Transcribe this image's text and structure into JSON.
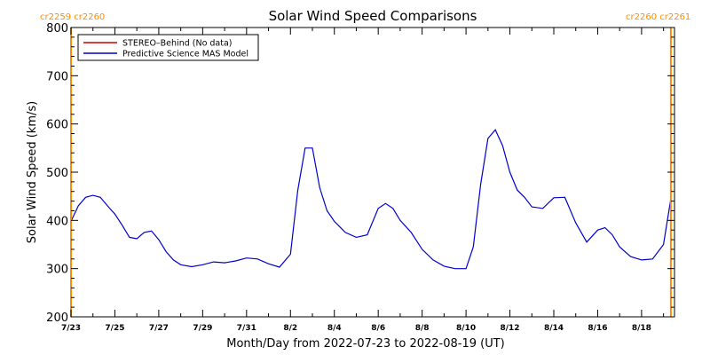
{
  "chart_data": {
    "type": "line",
    "title": "Solar Wind Speed Comparisons",
    "xlabel": "Month/Day from 2022-07-23 to 2022-08-19 (UT)",
    "ylabel": "Solar Wind Speed (km/s)",
    "xlim": [
      "2022-07-23",
      "2022-08-19T12:00"
    ],
    "ylim": [
      200,
      800
    ],
    "yticks": [
      200,
      300,
      400,
      500,
      600,
      700,
      800
    ],
    "xtick_labels": [
      "7/23",
      "7/25",
      "7/27",
      "7/29",
      "7/31",
      "8/2",
      "8/4",
      "8/6",
      "8/8",
      "8/10",
      "8/12",
      "8/14",
      "8/16",
      "8/18"
    ],
    "legend_position": "top-left",
    "legend": [
      {
        "name": "STEREO–Behind (No data)",
        "color": "#cc0000"
      },
      {
        "name": "Predictive Science MAS Model",
        "color": "#0000cc"
      }
    ],
    "carrington_markers": [
      {
        "date": "2022-07-23",
        "left_label": "cr2259",
        "right_label": "cr2260",
        "label_side": "left"
      },
      {
        "date": "2022-08-19T08:00",
        "left_label": "cr2260",
        "right_label": "cr2261",
        "label_side": "right"
      }
    ],
    "series": [
      {
        "name": "Predictive Science MAS Model",
        "color": "#0000cc",
        "x": [
          "2022-07-23T00:00",
          "2022-07-23T08:00",
          "2022-07-23T16:00",
          "2022-07-24T00:00",
          "2022-07-24T08:00",
          "2022-07-24T16:00",
          "2022-07-25T00:00",
          "2022-07-25T08:00",
          "2022-07-25T16:00",
          "2022-07-26T00:00",
          "2022-07-26T08:00",
          "2022-07-26T16:00",
          "2022-07-27T00:00",
          "2022-07-27T08:00",
          "2022-07-27T16:00",
          "2022-07-28T00:00",
          "2022-07-28T12:00",
          "2022-07-29T00:00",
          "2022-07-29T12:00",
          "2022-07-30T00:00",
          "2022-07-30T12:00",
          "2022-07-31T00:00",
          "2022-07-31T12:00",
          "2022-08-01T00:00",
          "2022-08-01T12:00",
          "2022-08-02T00:00",
          "2022-08-02T08:00",
          "2022-08-02T16:00",
          "2022-08-03T00:00",
          "2022-08-03T08:00",
          "2022-08-03T16:00",
          "2022-08-04T00:00",
          "2022-08-04T12:00",
          "2022-08-05T00:00",
          "2022-08-05T12:00",
          "2022-08-06T00:00",
          "2022-08-06T08:00",
          "2022-08-06T16:00",
          "2022-08-07T00:00",
          "2022-08-07T12:00",
          "2022-08-08T00:00",
          "2022-08-08T12:00",
          "2022-08-09T00:00",
          "2022-08-09T12:00",
          "2022-08-10T00:00",
          "2022-08-10T08:00",
          "2022-08-10T16:00",
          "2022-08-11T00:00",
          "2022-08-11T08:00",
          "2022-08-11T16:00",
          "2022-08-12T00:00",
          "2022-08-12T08:00",
          "2022-08-12T16:00",
          "2022-08-13T00:00",
          "2022-08-13T12:00",
          "2022-08-14T00:00",
          "2022-08-14T12:00",
          "2022-08-15T00:00",
          "2022-08-15T12:00",
          "2022-08-16T00:00",
          "2022-08-16T08:00",
          "2022-08-16T16:00",
          "2022-08-17T00:00",
          "2022-08-17T12:00",
          "2022-08-18T00:00",
          "2022-08-18T12:00",
          "2022-08-19T00:00",
          "2022-08-19T08:00"
        ],
        "values": [
          398,
          430,
          448,
          452,
          448,
          430,
          413,
          390,
          365,
          362,
          375,
          378,
          360,
          335,
          318,
          308,
          304,
          308,
          314,
          312,
          316,
          322,
          320,
          310,
          303,
          330,
          462,
          550,
          550,
          468,
          420,
          398,
          375,
          365,
          370,
          425,
          435,
          425,
          400,
          375,
          340,
          318,
          305,
          300,
          300,
          345,
          475,
          570,
          588,
          555,
          500,
          463,
          448,
          428,
          425,
          447,
          448,
          395,
          355,
          380,
          385,
          370,
          345,
          325,
          318,
          320,
          350,
          445
        ]
      }
    ]
  }
}
